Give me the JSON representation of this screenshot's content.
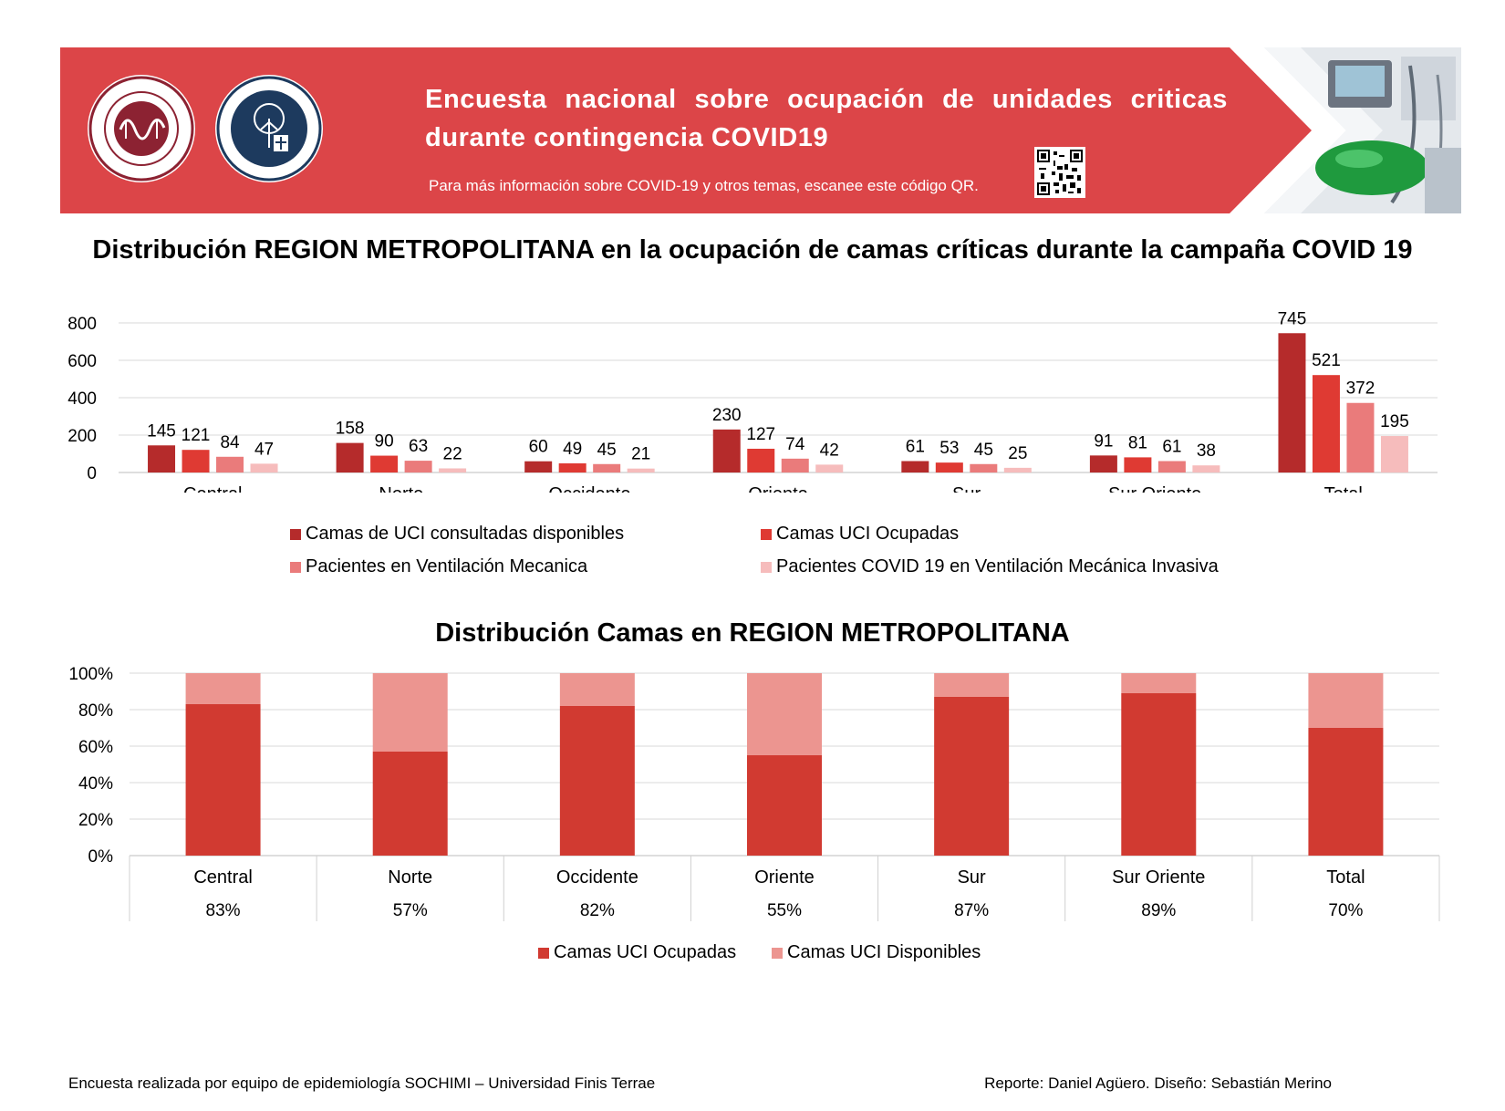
{
  "banner": {
    "title": "Encuesta nacional sobre ocupación de unidades criticas durante contingencia COVID19",
    "subtitle": "Para más información sobre COVID-19 y otros temas, escanee este código QR.",
    "logos": [
      "sociedad-chilena-medicina-intensiva-logo",
      "universidad-finis-terrae-logo"
    ],
    "icons": [
      "qr-code-icon"
    ],
    "colors": {
      "banner": "#dc4548",
      "white": "#ffffff"
    }
  },
  "chart_data": [
    {
      "type": "bar",
      "title": "Distribución REGION METROPOLITANA en la ocupación de camas críticas durante la campaña COVID 19",
      "categories": [
        "Central",
        "Norte",
        "Occidente",
        "Oriente",
        "Sur",
        "Sur Oriente",
        "Total"
      ],
      "series": [
        {
          "name": "Camas de UCI consultadas disponibles",
          "color": "#b52b2b",
          "values": [
            145,
            158,
            60,
            230,
            61,
            91,
            745
          ]
        },
        {
          "name": "Camas UCI Ocupadas",
          "color": "#df3a33",
          "values": [
            121,
            90,
            49,
            127,
            53,
            81,
            521
          ]
        },
        {
          "name": "Pacientes en Ventilación Mecanica",
          "color": "#ea7b7b",
          "values": [
            84,
            63,
            45,
            74,
            45,
            61,
            372
          ]
        },
        {
          "name": "Pacientes COVID 19 en Ventilación Mecánica Invasiva",
          "color": "#f6bcbc",
          "values": [
            47,
            22,
            21,
            42,
            25,
            38,
            195
          ]
        }
      ],
      "yticks": [
        "0",
        "200",
        "400",
        "600",
        "800"
      ],
      "ylim": [
        0,
        800
      ],
      "grid": true,
      "legend_position": "bottom"
    },
    {
      "type": "bar",
      "stacked": true,
      "normalized": true,
      "title": "Distribución Camas en REGION METROPOLITANA",
      "categories": [
        "Central",
        "Norte",
        "Occidente",
        "Oriente",
        "Sur",
        "Sur Oriente",
        "Total"
      ],
      "table_values": [
        "83%",
        "57%",
        "82%",
        "55%",
        "87%",
        "89%",
        "70%"
      ],
      "series": [
        {
          "name": "Camas UCI Ocupadas",
          "color": "#d13a31",
          "values": [
            83,
            57,
            82,
            55,
            87,
            89,
            70
          ]
        },
        {
          "name": "Camas UCI Disponibles",
          "color": "#ec9590",
          "values": [
            17,
            43,
            18,
            45,
            13,
            11,
            30
          ]
        }
      ],
      "yticks": [
        "0%",
        "20%",
        "40%",
        "60%",
        "80%",
        "100%"
      ],
      "ylim": [
        0,
        100
      ],
      "grid": true,
      "legend_position": "bottom"
    }
  ],
  "footer": {
    "left": "Encuesta realizada por equipo de epidemiología SOCHIMI – Universidad Finis Terrae",
    "right": "Reporte: Daniel Agüero. Diseño: Sebastián Merino"
  }
}
